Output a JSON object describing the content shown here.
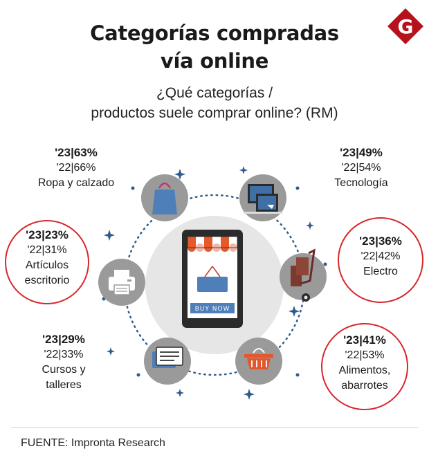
{
  "title_line1": "Categorías compradas",
  "title_line2": "vía online",
  "subtitle_line1": "¿Qué categorías /",
  "subtitle_line2": "productos suele comprar online? (RM)",
  "logo_letter": "G",
  "phone_button": "BUY NOW",
  "source": "FUENTE: Impronta Research",
  "colors": {
    "accent": "#d7262b",
    "icon_circle": "#9a9a9a",
    "center_circle": "#e6e6e6"
  },
  "chart_data": {
    "type": "table",
    "series": [
      {
        "name": "'23",
        "values": [
          63,
          49,
          23,
          36,
          29,
          41
        ]
      },
      {
        "name": "'22",
        "values": [
          66,
          54,
          31,
          42,
          33,
          53
        ]
      }
    ],
    "categories": [
      "Ropa y calzado",
      "Tecnología",
      "Artículos escritorio",
      "Electro",
      "Cursos y talleres",
      "Alimentos, abarrotes"
    ],
    "items": [
      {
        "key": "ropa",
        "y23": "'23|63%",
        "y22": "'22|66%",
        "label_lines": [
          "Ropa y calzado"
        ],
        "highlight": false,
        "icon": "shopping-bag-icon"
      },
      {
        "key": "tec",
        "y23": "'23|49%",
        "y22": "'22|54%",
        "label_lines": [
          "Tecnología"
        ],
        "highlight": false,
        "icon": "computer-icon"
      },
      {
        "key": "art",
        "y23": "'23|23%",
        "y22": "'22|31%",
        "label_lines": [
          "Artículos",
          "escritorio"
        ],
        "highlight": true,
        "icon": "printer-icon"
      },
      {
        "key": "ele",
        "y23": "'23|36%",
        "y22": "'22|42%",
        "label_lines": [
          "Electro"
        ],
        "highlight": true,
        "icon": "hand-truck-icon"
      },
      {
        "key": "cur",
        "y23": "'23|29%",
        "y22": "'22|33%",
        "label_lines": [
          "Cursos y",
          "talleres"
        ],
        "highlight": false,
        "icon": "chat-icon"
      },
      {
        "key": "ali",
        "y23": "'23|41%",
        "y22": "'22|53%",
        "label_lines": [
          "Alimentos,",
          "abarrotes"
        ],
        "highlight": true,
        "icon": "basket-icon"
      }
    ]
  }
}
